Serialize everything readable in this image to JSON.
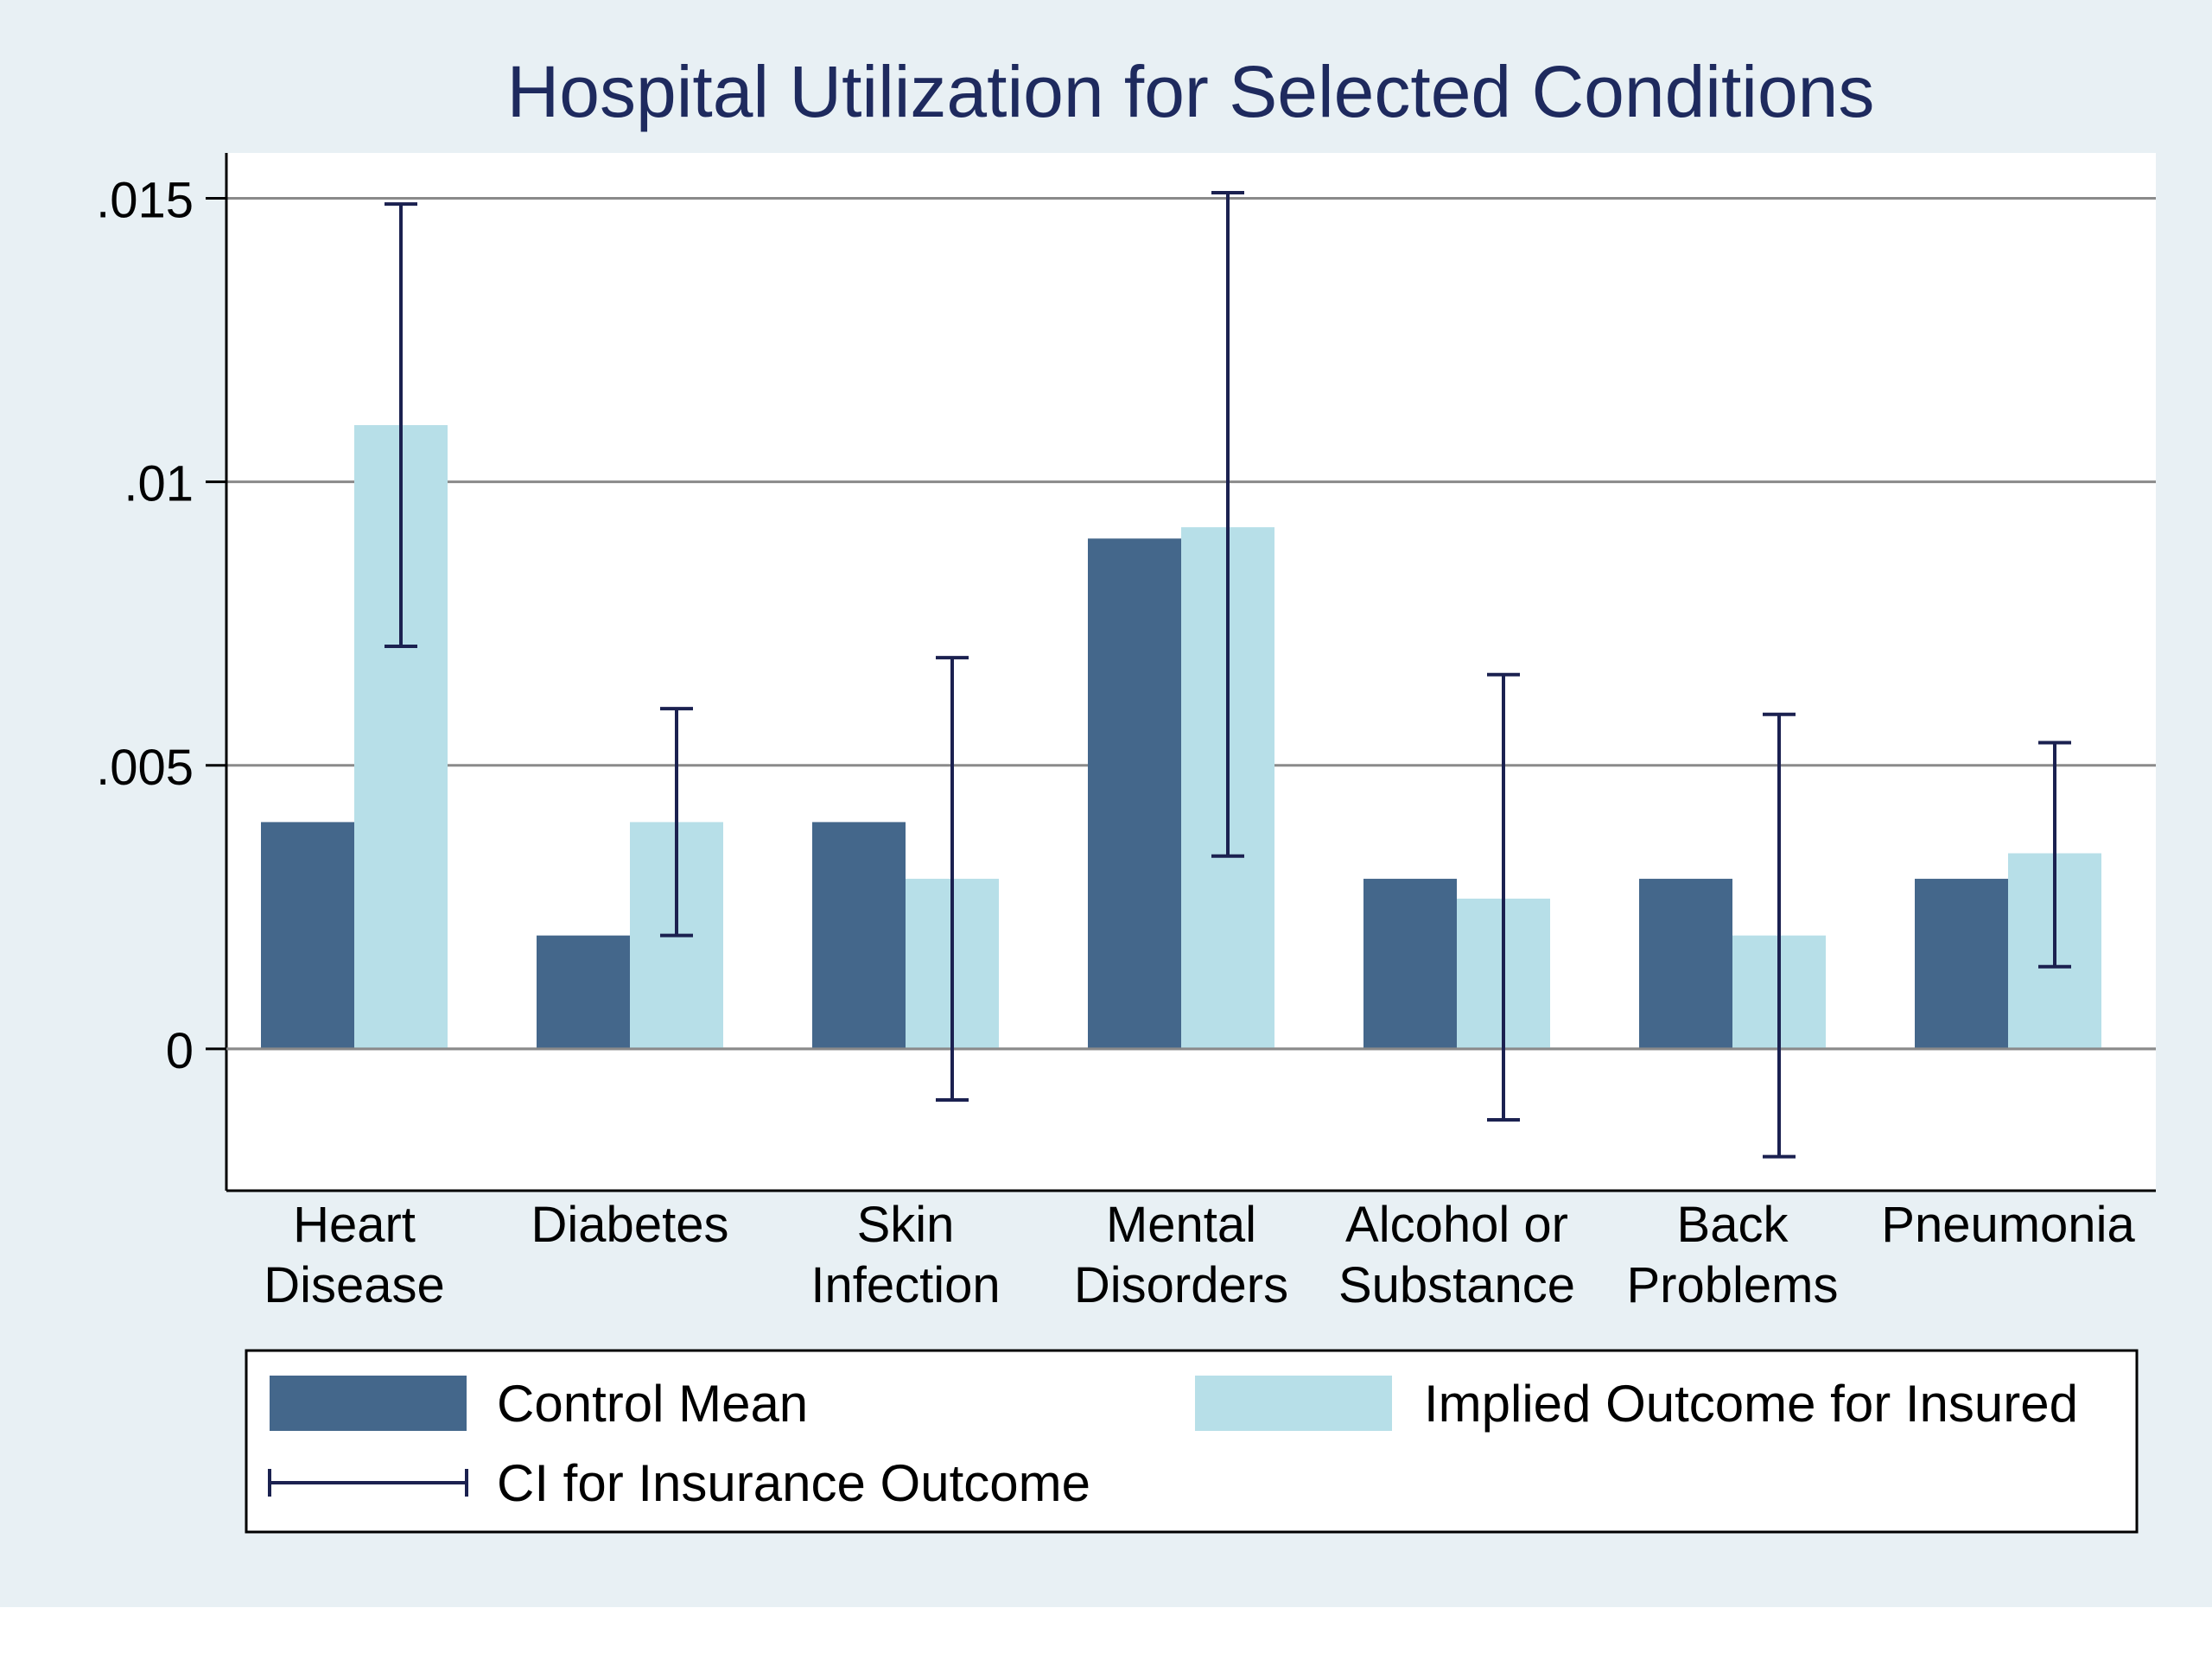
{
  "chart_data": {
    "type": "bar",
    "title": "Hospital Utilization for Selected Conditions",
    "xlabel": "",
    "ylabel": "",
    "ylim": [
      -0.0025,
      0.0158
    ],
    "yticks": [
      0,
      0.005,
      0.01,
      0.015
    ],
    "ytick_labels": [
      "0",
      ".005",
      ".01",
      ".015"
    ],
    "grid": true,
    "categories": [
      [
        "Heart",
        "Disease"
      ],
      [
        "Diabetes"
      ],
      [
        "Skin",
        "Infection"
      ],
      [
        "Mental",
        "Disorders"
      ],
      [
        "Alcohol or",
        "Substance"
      ],
      [
        "Back",
        "Problems"
      ],
      [
        "Pneumonia"
      ]
    ],
    "series": [
      {
        "name": "Control Mean",
        "color": "#44678b",
        "values": [
          0.004,
          0.002,
          0.004,
          0.009,
          0.003,
          0.003,
          0.003
        ]
      },
      {
        "name": "Implied Outcome for Insured",
        "color": "#b7dfe8",
        "values": [
          0.011,
          0.004,
          0.003,
          0.0092,
          0.00265,
          0.002,
          0.00345
        ]
      }
    ],
    "error_bars": {
      "name": "CI for Insurance Outcome",
      "color": "#1b2150",
      "lower": [
        0.0071,
        0.002,
        -0.0009,
        0.0034,
        -0.00125,
        -0.0019,
        0.00145
      ],
      "upper": [
        0.0149,
        0.006,
        0.0069,
        0.0151,
        0.0066,
        0.0059,
        0.0054
      ]
    },
    "legend": {
      "placement": "bottom",
      "columns": 2
    }
  }
}
